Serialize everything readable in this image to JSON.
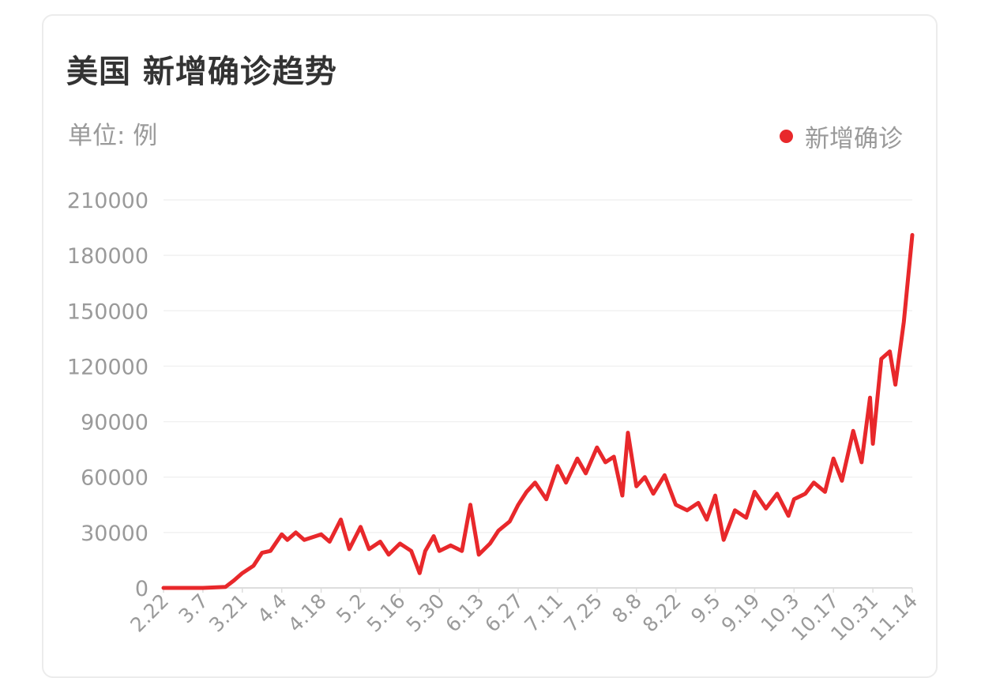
{
  "card": {
    "title": "美国 新增确诊趋势",
    "unit": "单位: 例",
    "legend_label": "新增确诊",
    "accent_color": "#e8282b"
  },
  "chart_data": {
    "type": "line",
    "title": "美国 新增确诊趋势",
    "ylabel": "单位: 例",
    "xlabel": "",
    "ylim": [
      0,
      210000
    ],
    "y_ticks": [
      0,
      30000,
      60000,
      90000,
      120000,
      150000,
      180000,
      210000
    ],
    "x_tick_labels": [
      "2.22",
      "3.7",
      "3.21",
      "4.4",
      "4.18",
      "5.2",
      "5.16",
      "5.30",
      "6.13",
      "6.27",
      "7.11",
      "7.25",
      "8.8",
      "8.22",
      "9.5",
      "9.19",
      "10.3",
      "10.17",
      "10.31",
      "11.14"
    ],
    "grid": true,
    "legend_position": "top-right",
    "series": [
      {
        "name": "新增确诊",
        "color": "#e8282b",
        "x_start": "2.22",
        "x_end": "11.14",
        "points": [
          [
            "2.22",
            0
          ],
          [
            "3.7",
            0
          ],
          [
            "3.15",
            500
          ],
          [
            "3.18",
            4000
          ],
          [
            "3.21",
            8000
          ],
          [
            "3.25",
            12000
          ],
          [
            "3.28",
            19000
          ],
          [
            "3.31",
            20000
          ],
          [
            "4.4",
            29000
          ],
          [
            "4.6",
            26000
          ],
          [
            "4.9",
            30000
          ],
          [
            "4.12",
            26000
          ],
          [
            "4.18",
            29000
          ],
          [
            "4.21",
            25000
          ],
          [
            "4.25",
            37000
          ],
          [
            "4.28",
            21000
          ],
          [
            "5.2",
            33000
          ],
          [
            "5.5",
            21000
          ],
          [
            "5.9",
            25000
          ],
          [
            "5.12",
            18000
          ],
          [
            "5.16",
            24000
          ],
          [
            "5.20",
            20000
          ],
          [
            "5.23",
            8000
          ],
          [
            "5.25",
            20000
          ],
          [
            "5.28",
            28000
          ],
          [
            "5.30",
            20000
          ],
          [
            "6.3",
            23000
          ],
          [
            "6.7",
            20000
          ],
          [
            "6.10",
            45000
          ],
          [
            "6.13",
            18000
          ],
          [
            "6.17",
            24000
          ],
          [
            "6.20",
            31000
          ],
          [
            "6.24",
            36000
          ],
          [
            "6.27",
            45000
          ],
          [
            "6.30",
            52000
          ],
          [
            "7.3",
            57000
          ],
          [
            "7.7",
            48000
          ],
          [
            "7.11",
            66000
          ],
          [
            "7.14",
            57000
          ],
          [
            "7.18",
            70000
          ],
          [
            "7.21",
            62000
          ],
          [
            "7.25",
            76000
          ],
          [
            "7.28",
            68000
          ],
          [
            "7.31",
            71000
          ],
          [
            "8.3",
            50000
          ],
          [
            "8.5",
            84000
          ],
          [
            "8.8",
            55000
          ],
          [
            "8.11",
            60000
          ],
          [
            "8.14",
            51000
          ],
          [
            "8.18",
            61000
          ],
          [
            "8.22",
            45000
          ],
          [
            "8.26",
            42000
          ],
          [
            "8.30",
            46000
          ],
          [
            "9.2",
            37000
          ],
          [
            "9.5",
            50000
          ],
          [
            "9.8",
            26000
          ],
          [
            "9.12",
            42000
          ],
          [
            "9.16",
            38000
          ],
          [
            "9.19",
            52000
          ],
          [
            "9.23",
            43000
          ],
          [
            "9.27",
            51000
          ],
          [
            "10.1",
            39000
          ],
          [
            "10.3",
            48000
          ],
          [
            "10.7",
            51000
          ],
          [
            "10.10",
            57000
          ],
          [
            "10.14",
            52000
          ],
          [
            "10.17",
            70000
          ],
          [
            "10.20",
            58000
          ],
          [
            "10.24",
            85000
          ],
          [
            "10.27",
            68000
          ],
          [
            "10.30",
            103000
          ],
          [
            "10.31",
            78000
          ],
          [
            "11.3",
            124000
          ],
          [
            "11.6",
            128000
          ],
          [
            "11.8",
            110000
          ],
          [
            "11.11",
            144000
          ],
          [
            "11.14",
            191000
          ]
        ]
      }
    ]
  }
}
